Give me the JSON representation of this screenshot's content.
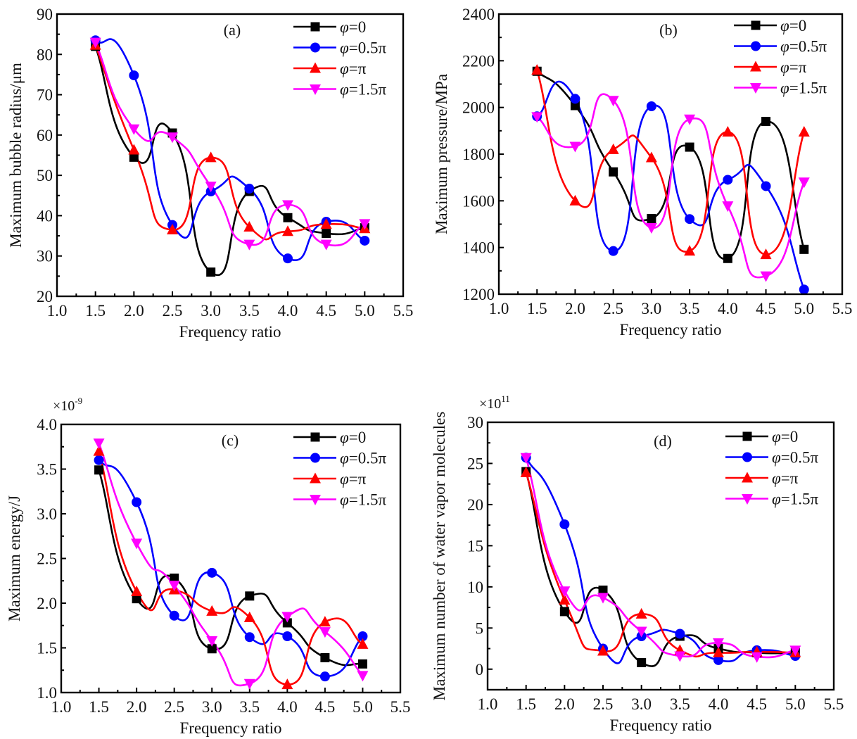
{
  "series_styles": [
    {
      "name": "φ=0",
      "phi": "φ",
      "rest": "=0",
      "color": "#000000",
      "marker": "square"
    },
    {
      "name": "φ=0.5π",
      "phi": "φ",
      "rest": "=0.5π",
      "color": "#0000ff",
      "marker": "circle"
    },
    {
      "name": "φ=π",
      "phi": "φ",
      "rest": "=π",
      "color": "#ff0000",
      "marker": "triangle-up"
    },
    {
      "name": "φ=1.5π",
      "phi": "φ",
      "rest": "=1.5π",
      "color": "#ff00ff",
      "marker": "triangle-down"
    }
  ],
  "chart_data": [
    {
      "type": "line",
      "panel": "(a)",
      "title": "",
      "xlabel": "Frequency ratio",
      "ylabel": "Maximum bubble radius/μm",
      "multiplier": "",
      "x": [
        1.5,
        2.0,
        2.5,
        3.0,
        3.5,
        4.0,
        4.5,
        5.0
      ],
      "xlim": [
        1.0,
        5.5
      ],
      "ylim": [
        20,
        90
      ],
      "xticks": [
        "1.0",
        "1.5",
        "2.0",
        "2.5",
        "3.0",
        "3.5",
        "4.0",
        "4.5",
        "5.0",
        "5.5"
      ],
      "yticks": [
        "20",
        "30",
        "40",
        "50",
        "60",
        "70",
        "80",
        "90"
      ],
      "ytick_values": [
        20,
        30,
        40,
        50,
        60,
        70,
        80,
        90
      ],
      "legend": "top-right",
      "grid": false,
      "series": [
        {
          "name": "φ=0",
          "values": [
            82.0,
            54.5,
            60.5,
            26.0,
            46.0,
            39.5,
            35.6,
            37.0
          ]
        },
        {
          "name": "φ=0.5π",
          "values": [
            83.5,
            74.8,
            37.7,
            46.0,
            46.7,
            29.4,
            38.5,
            33.8
          ]
        },
        {
          "name": "φ=π",
          "values": [
            82.3,
            56.3,
            36.5,
            54.4,
            37.2,
            36.1,
            37.9,
            36.8
          ]
        },
        {
          "name": "φ=1.5π",
          "values": [
            83.0,
            61.5,
            59.5,
            47.3,
            32.9,
            42.7,
            32.9,
            38.0
          ]
        }
      ]
    },
    {
      "type": "line",
      "panel": "(b)",
      "title": "",
      "xlabel": "Frequency ratio",
      "ylabel": "Maximum pressure/MPa",
      "multiplier": "",
      "x": [
        1.5,
        2.0,
        2.5,
        3.0,
        3.5,
        4.0,
        4.5,
        5.0
      ],
      "xlim": [
        1.0,
        5.5
      ],
      "ylim": [
        1200,
        2400
      ],
      "xticks": [
        "1.0",
        "1.5",
        "2.0",
        "2.5",
        "3.0",
        "3.5",
        "4.0",
        "4.5",
        "5.0",
        "5.5"
      ],
      "yticks": [
        "1200",
        "1400",
        "1600",
        "1800",
        "2000",
        "2200",
        "2400"
      ],
      "ytick_values": [
        1200,
        1400,
        1600,
        1800,
        2000,
        2200,
        2400
      ],
      "legend": "top-right",
      "grid": false,
      "series": [
        {
          "name": "φ=0",
          "values": [
            2155,
            2008,
            1724,
            1524,
            1830,
            1353,
            1940,
            1392
          ]
        },
        {
          "name": "φ=0.5π",
          "values": [
            1962,
            2037,
            1385,
            2005,
            1522,
            1690,
            1663,
            1220
          ]
        },
        {
          "name": "φ=π",
          "values": [
            2160,
            1600,
            1820,
            1785,
            1385,
            1895,
            1370,
            1895
          ]
        },
        {
          "name": "φ=1.5π",
          "values": [
            1960,
            1833,
            2030,
            1485,
            1950,
            1578,
            1278,
            1680
          ]
        }
      ]
    },
    {
      "type": "line",
      "panel": "(c)",
      "title": "",
      "xlabel": "Frequency ratio",
      "ylabel": "Maximum energy/J",
      "multiplier": "×10",
      "multiplier_exp": "-9",
      "x": [
        1.5,
        2.0,
        2.5,
        3.0,
        3.5,
        4.0,
        4.5,
        5.0
      ],
      "xlim": [
        1.0,
        5.5
      ],
      "ylim": [
        1.0,
        4.0
      ],
      "xticks": [
        "1.0",
        "1.5",
        "2.0",
        "2.5",
        "3.0",
        "3.5",
        "4.0",
        "4.5",
        "5.0",
        "5.5"
      ],
      "yticks": [
        "1.0",
        "1.5",
        "2.0",
        "2.5",
        "3.0",
        "3.5",
        "4.0"
      ],
      "ytick_values": [
        1.0,
        1.5,
        2.0,
        2.5,
        3.0,
        3.5,
        4.0
      ],
      "legend": "top-right",
      "grid": false,
      "series": [
        {
          "name": "φ=0",
          "values": [
            3.49,
            2.05,
            2.28,
            1.49,
            2.08,
            1.78,
            1.39,
            1.32
          ]
        },
        {
          "name": "φ=0.5π",
          "values": [
            3.6,
            3.13,
            1.86,
            2.34,
            1.62,
            1.63,
            1.18,
            1.63
          ]
        },
        {
          "name": "φ=π",
          "values": [
            3.7,
            2.13,
            2.15,
            1.91,
            1.84,
            1.09,
            1.79,
            1.54
          ]
        },
        {
          "name": "φ=1.5π",
          "values": [
            3.79,
            2.67,
            2.2,
            1.58,
            1.1,
            1.85,
            1.68,
            1.19
          ]
        }
      ]
    },
    {
      "type": "line",
      "panel": "(d)",
      "title": "",
      "xlabel": "Frequency ratio",
      "ylabel": "Maximum number of water vapor molecules",
      "multiplier": "×10",
      "multiplier_exp": "11",
      "x": [
        1.5,
        2.0,
        2.5,
        3.0,
        3.5,
        4.0,
        4.5,
        5.0
      ],
      "xlim": [
        1.0,
        5.5
      ],
      "ylim": [
        -2.5,
        30
      ],
      "xticks": [
        "1.0",
        "1.5",
        "2.0",
        "2.5",
        "3.0",
        "3.5",
        "4.0",
        "4.5",
        "5.0",
        "5.5"
      ],
      "yticks": [
        "0",
        "5",
        "10",
        "15",
        "20",
        "25",
        "30"
      ],
      "ytick_values": [
        0,
        5,
        10,
        15,
        20,
        25,
        30
      ],
      "legend": "top-right",
      "grid": false,
      "series": [
        {
          "name": "φ=0",
          "values": [
            24.0,
            7.0,
            9.6,
            0.8,
            4.0,
            2.5,
            2.0,
            2.0
          ]
        },
        {
          "name": "φ=0.5π",
          "values": [
            25.7,
            17.6,
            2.5,
            4.0,
            4.3,
            1.1,
            2.3,
            1.6
          ]
        },
        {
          "name": "φ=π",
          "values": [
            23.9,
            8.4,
            2.2,
            6.7,
            2.3,
            2.0,
            2.1,
            2.0
          ]
        },
        {
          "name": "φ=1.5π",
          "values": [
            25.7,
            9.5,
            8.7,
            4.6,
            1.6,
            3.2,
            1.5,
            2.3
          ]
        }
      ]
    }
  ]
}
